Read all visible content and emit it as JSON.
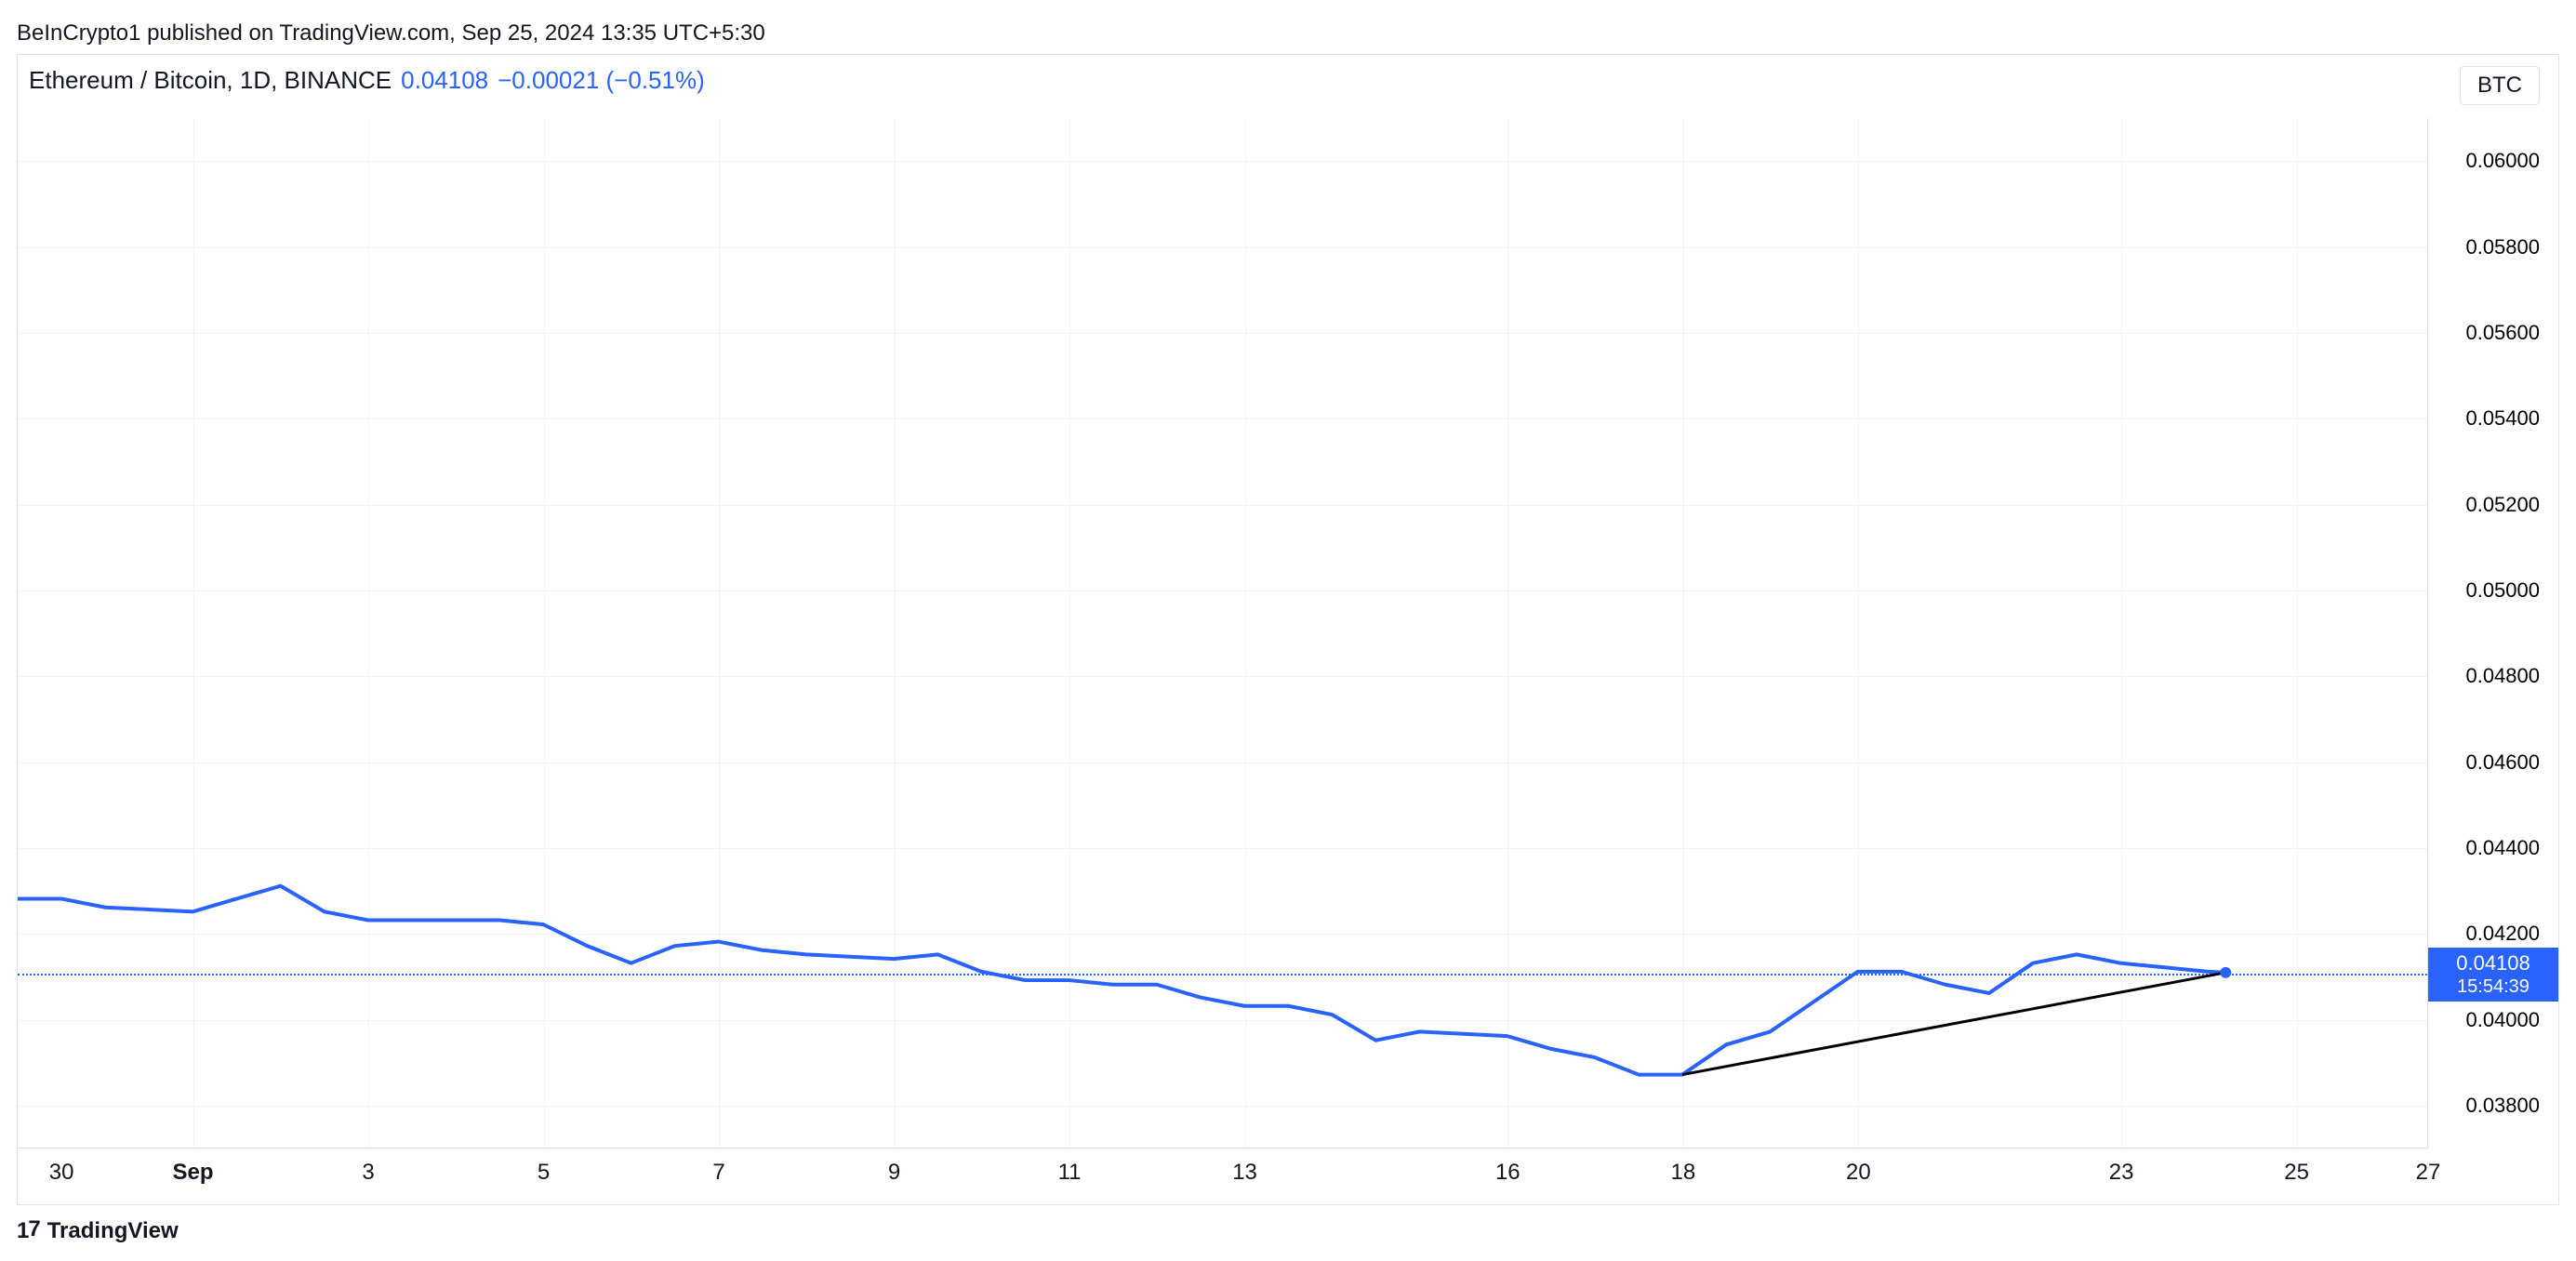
{
  "attribution": "BeInCrypto1 published on TradingView.com, Sep 25, 2024 13:35 UTC+5:30",
  "header": {
    "symbol": "Ethereum / Bitcoin, 1D, BINANCE",
    "price": "0.04108",
    "change": "−0.00021 (−0.51%)"
  },
  "unit": "BTC",
  "footer": "TradingView",
  "price_tag": {
    "value": "0.04108",
    "countdown": "15:54:39"
  },
  "chart": {
    "type": "line",
    "line_color": "#2962ff",
    "line_width": 4,
    "trend_line_color": "#000000",
    "trend_line_width": 3,
    "last_point_dot_color": "#2962ff",
    "last_point_dot_radius": 6,
    "dotted_line_color": "#2962ff",
    "background_color": "#ffffff",
    "grid_color": "#f0f3fa",
    "border_color": "#e0e3eb",
    "y_axis": {
      "min": 0.037,
      "max": 0.061,
      "ticks": [
        0.038,
        0.04,
        0.042,
        0.044,
        0.046,
        0.048,
        0.05,
        0.052,
        0.054,
        0.056,
        0.058,
        0.06
      ],
      "tick_labels": [
        "0.03800",
        "0.04000",
        "0.04200",
        "0.04400",
        "0.04600",
        "0.04800",
        "0.05000",
        "0.05200",
        "0.05400",
        "0.05600",
        "0.05800",
        "0.06000"
      ],
      "label_fontsize": 22,
      "label_color": "#000000"
    },
    "x_axis": {
      "min": 0,
      "max": 27.5,
      "ticks": [
        {
          "pos": 0.5,
          "label": "30",
          "bold": false
        },
        {
          "pos": 2.0,
          "label": "Sep",
          "bold": true
        },
        {
          "pos": 4.0,
          "label": "3",
          "bold": false
        },
        {
          "pos": 6.0,
          "label": "5",
          "bold": false
        },
        {
          "pos": 8.0,
          "label": "7",
          "bold": false
        },
        {
          "pos": 10.0,
          "label": "9",
          "bold": false
        },
        {
          "pos": 12.0,
          "label": "11",
          "bold": false
        },
        {
          "pos": 14.0,
          "label": "13",
          "bold": false
        },
        {
          "pos": 17.0,
          "label": "16",
          "bold": false
        },
        {
          "pos": 19.0,
          "label": "18",
          "bold": false
        },
        {
          "pos": 21.0,
          "label": "20",
          "bold": false
        },
        {
          "pos": 24.0,
          "label": "23",
          "bold": false
        },
        {
          "pos": 26.0,
          "label": "25",
          "bold": false
        },
        {
          "pos": 27.5,
          "label": "27",
          "bold": false
        }
      ],
      "grid_positions": [
        2.0,
        4.0,
        6.0,
        8.0,
        10.0,
        12.0,
        14.0,
        17.0,
        19.0,
        21.0,
        24.0,
        26.0
      ],
      "label_fontsize": 24,
      "label_color": "#131722"
    },
    "series": [
      {
        "x": 0.0,
        "y": 0.0428
      },
      {
        "x": 0.5,
        "y": 0.0428
      },
      {
        "x": 1.0,
        "y": 0.0426
      },
      {
        "x": 2.0,
        "y": 0.0425
      },
      {
        "x": 2.5,
        "y": 0.0428
      },
      {
        "x": 3.0,
        "y": 0.0431
      },
      {
        "x": 3.5,
        "y": 0.0425
      },
      {
        "x": 4.0,
        "y": 0.0423
      },
      {
        "x": 5.0,
        "y": 0.0423
      },
      {
        "x": 5.5,
        "y": 0.0423
      },
      {
        "x": 6.0,
        "y": 0.0422
      },
      {
        "x": 6.5,
        "y": 0.0417
      },
      {
        "x": 7.0,
        "y": 0.0413
      },
      {
        "x": 7.5,
        "y": 0.0417
      },
      {
        "x": 8.0,
        "y": 0.0418
      },
      {
        "x": 8.5,
        "y": 0.0416
      },
      {
        "x": 9.0,
        "y": 0.0415
      },
      {
        "x": 10.0,
        "y": 0.0414
      },
      {
        "x": 10.5,
        "y": 0.0415
      },
      {
        "x": 11.0,
        "y": 0.0411
      },
      {
        "x": 11.5,
        "y": 0.0409
      },
      {
        "x": 12.0,
        "y": 0.0409
      },
      {
        "x": 12.5,
        "y": 0.0408
      },
      {
        "x": 13.0,
        "y": 0.0408
      },
      {
        "x": 13.5,
        "y": 0.0405
      },
      {
        "x": 14.0,
        "y": 0.0403
      },
      {
        "x": 14.5,
        "y": 0.0403
      },
      {
        "x": 15.0,
        "y": 0.0401
      },
      {
        "x": 15.5,
        "y": 0.0395
      },
      {
        "x": 16.0,
        "y": 0.0397
      },
      {
        "x": 17.0,
        "y": 0.0396
      },
      {
        "x": 17.5,
        "y": 0.0393
      },
      {
        "x": 18.0,
        "y": 0.0391
      },
      {
        "x": 18.5,
        "y": 0.0387
      },
      {
        "x": 19.0,
        "y": 0.0387
      },
      {
        "x": 19.5,
        "y": 0.0394
      },
      {
        "x": 20.0,
        "y": 0.0397
      },
      {
        "x": 20.5,
        "y": 0.0404
      },
      {
        "x": 21.0,
        "y": 0.0411
      },
      {
        "x": 21.5,
        "y": 0.0411
      },
      {
        "x": 22.0,
        "y": 0.0408
      },
      {
        "x": 22.5,
        "y": 0.0406
      },
      {
        "x": 23.0,
        "y": 0.0413
      },
      {
        "x": 23.5,
        "y": 0.0415
      },
      {
        "x": 24.0,
        "y": 0.0413
      },
      {
        "x": 24.5,
        "y": 0.0412
      },
      {
        "x": 25.0,
        "y": 0.0411
      },
      {
        "x": 25.2,
        "y": 0.04108
      }
    ],
    "trend_line": {
      "start": {
        "x": 19.0,
        "y": 0.0387
      },
      "end": {
        "x": 25.2,
        "y": 0.04108
      }
    },
    "current_price": 0.04108
  }
}
